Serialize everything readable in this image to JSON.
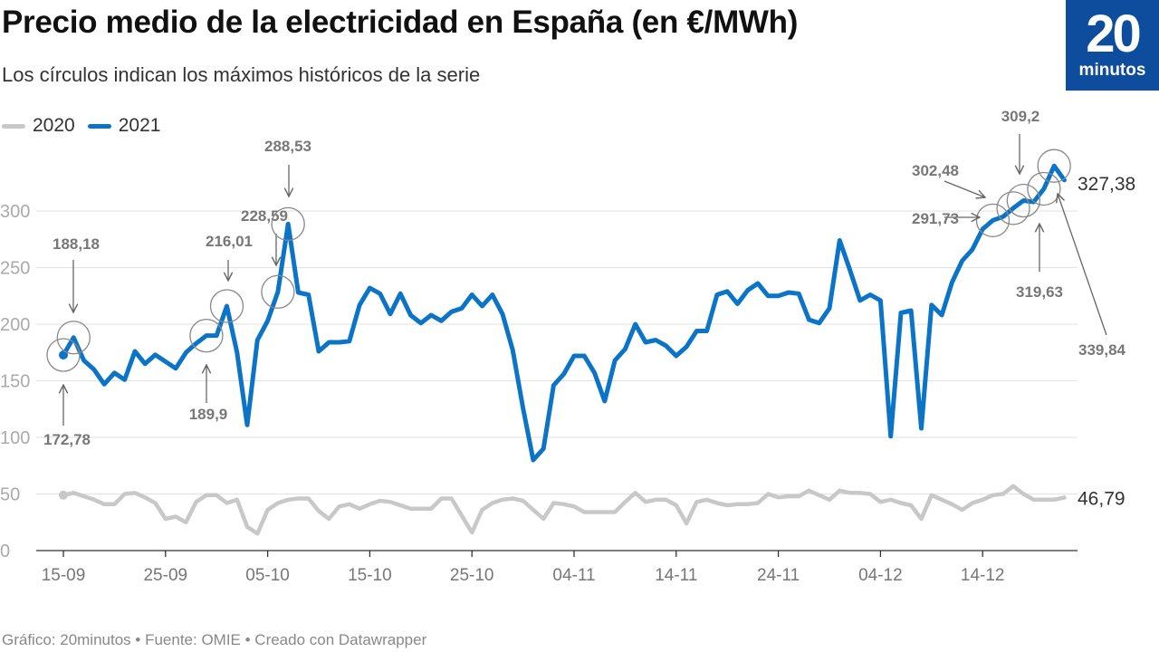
{
  "header": {
    "title": "Precio medio de la electricidad en España (en €/MWh)",
    "subtitle": "Los círculos indican los máximos históricos de la serie"
  },
  "logo": {
    "number": "20",
    "word": "minutos"
  },
  "footer": "Gráfico: 20minutos • Fuente: OMIE • Creado con Datawrapper",
  "colors": {
    "series_2021": "#0b74c6",
    "series_2020": "#c8c8c8",
    "brand": "#0e4c9e"
  },
  "chart_data": {
    "type": "line",
    "title": "Precio medio de la electricidad en España (en €/MWh)",
    "xlabel": "",
    "ylabel": "€/MWh",
    "ylim": [
      0,
      345
    ],
    "yticks": [
      0,
      50,
      100,
      150,
      200,
      250,
      300
    ],
    "ytick_labels": [
      "0",
      "50",
      "100",
      "150",
      "200",
      "250",
      "300"
    ],
    "x_start": "15-09",
    "x_days": 99,
    "xticks": [
      {
        "day": 0,
        "label": "15-09"
      },
      {
        "day": 10,
        "label": "25-09"
      },
      {
        "day": 20,
        "label": "05-10"
      },
      {
        "day": 30,
        "label": "15-10"
      },
      {
        "day": 40,
        "label": "25-10"
      },
      {
        "day": 50,
        "label": "04-11"
      },
      {
        "day": 60,
        "label": "14-11"
      },
      {
        "day": 70,
        "label": "24-11"
      },
      {
        "day": 80,
        "label": "04-12"
      },
      {
        "day": 90,
        "label": "14-12"
      }
    ],
    "grid": true,
    "legend": "top-left",
    "series": [
      {
        "name": "2020",
        "end_label": "46,79",
        "values": [
          49,
          51,
          48,
          45,
          41,
          41,
          50,
          51,
          47,
          42,
          28,
          30,
          25,
          43,
          49,
          49,
          42,
          45,
          21,
          15,
          36,
          42,
          45,
          46,
          46,
          35,
          28,
          39,
          41,
          37,
          41,
          44,
          43,
          40,
          37,
          37,
          37,
          46,
          46,
          31,
          16,
          36,
          42,
          45,
          46,
          44,
          36,
          28,
          42,
          41,
          39,
          34,
          34,
          34,
          34,
          43,
          51,
          43,
          45,
          45,
          40,
          24,
          43,
          45,
          42,
          40,
          41,
          41,
          42,
          50,
          47,
          48,
          48,
          53,
          49,
          45,
          53,
          51,
          51,
          50,
          43,
          45,
          42,
          40,
          28,
          49,
          45,
          41,
          36,
          42,
          45,
          49,
          50,
          57,
          50,
          45,
          45,
          45,
          46.79
        ]
      },
      {
        "name": "2021",
        "end_label": "327,38",
        "values": [
          172.78,
          188.18,
          168,
          160,
          147,
          157,
          151,
          176,
          165,
          173,
          167,
          161,
          175,
          183,
          189.9,
          190,
          216.01,
          175,
          111,
          186,
          203,
          228.59,
          288.53,
          228,
          226,
          176,
          184,
          184,
          185,
          217,
          232,
          227,
          209,
          227,
          208,
          201,
          208,
          203,
          211,
          214,
          226,
          216,
          226,
          209,
          177,
          126,
          80,
          90,
          146,
          156,
          172,
          172,
          157,
          132,
          168,
          178,
          200,
          184,
          186,
          181,
          172,
          180,
          194,
          194,
          226,
          229,
          218,
          230,
          236,
          225,
          225,
          228,
          227,
          204,
          201,
          214,
          274,
          248,
          221,
          226,
          221,
          101,
          210,
          212,
          108,
          217,
          208,
          237,
          256,
          266,
          284,
          291.73,
          295,
          302.48,
          309.2,
          308,
          319.63,
          339.84,
          327.38
        ]
      }
    ],
    "annotations": [
      {
        "day": 0,
        "value": 172.78,
        "label": "172,78"
      },
      {
        "day": 1,
        "value": 188.18,
        "label": "188,18"
      },
      {
        "day": 14,
        "value": 189.9,
        "label": "189,9"
      },
      {
        "day": 16,
        "value": 216.01,
        "label": "216,01"
      },
      {
        "day": 21,
        "value": 228.59,
        "label": "228,59"
      },
      {
        "day": 22,
        "value": 288.53,
        "label": "288,53"
      },
      {
        "day": 91,
        "value": 291.73,
        "label": "291,73"
      },
      {
        "day": 93,
        "value": 302.48,
        "label": "302,48"
      },
      {
        "day": 94,
        "value": 309.2,
        "label": "309,2"
      },
      {
        "day": 96,
        "value": 319.63,
        "label": "319,63"
      },
      {
        "day": 97,
        "value": 339.84,
        "label": "339,84"
      }
    ]
  }
}
